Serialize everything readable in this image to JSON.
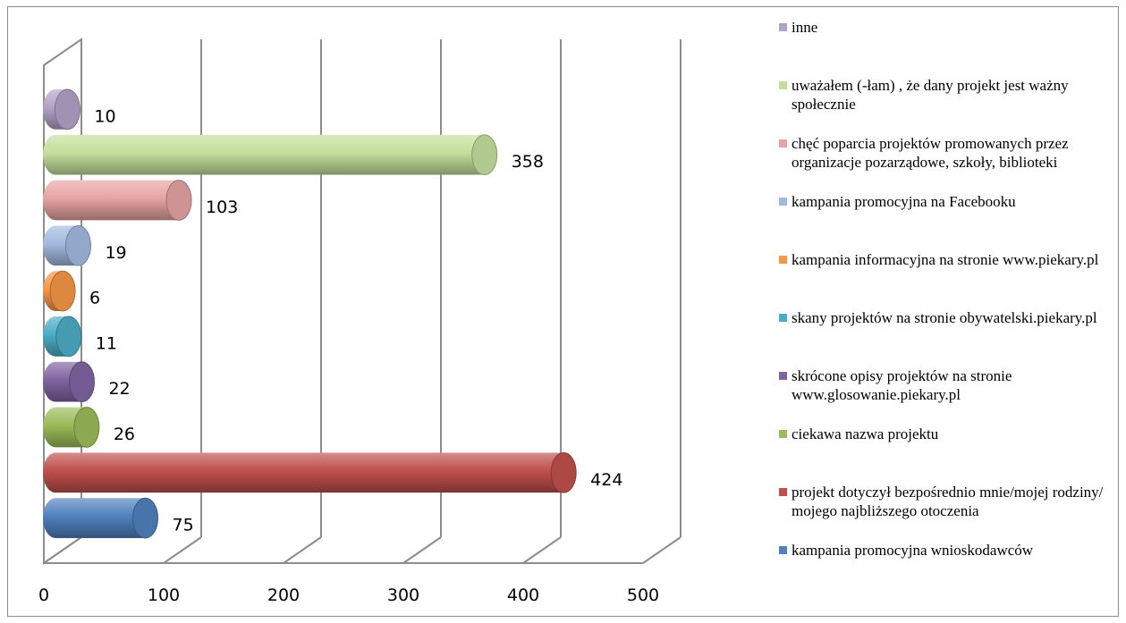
{
  "chart_data": {
    "type": "bar",
    "orientation": "horizontal",
    "style": "3d-cylinder",
    "categories": [
      "kampania  promocyjna wnioskodawców",
      "projekt dotyczył bezpośrednio mnie/mojej rodziny/ mojego najbliższego otoczenia",
      "ciekawa nazwa projektu",
      "skrócone opisy projektów na stronie www.glosowanie.piekary.pl",
      "skany projektów na stronie obywatelski.piekary.pl",
      "kampania informacyjna na stronie www.piekary.pl",
      "kampania promocyjna na Facebooku",
      "chęć poparcia projektów promowanych przez organizacje pozarządowe, szkoły, biblioteki",
      "uważałem (-łam) , że dany projekt jest ważny społecznie",
      "inne"
    ],
    "values": [
      75,
      424,
      26,
      22,
      11,
      6,
      19,
      103,
      358,
      10
    ],
    "colors": [
      "#4f81bd",
      "#c0504d",
      "#9bbb59",
      "#8064a2",
      "#4bacc6",
      "#f79646",
      "#a2b9e0",
      "#e6a3a3",
      "#c4df9b",
      "#b3a2c7"
    ],
    "xlim": [
      0,
      500
    ],
    "xticks": [
      "0",
      "100",
      "200",
      "300",
      "400",
      "500"
    ],
    "grid": true,
    "legend_position": "right"
  }
}
